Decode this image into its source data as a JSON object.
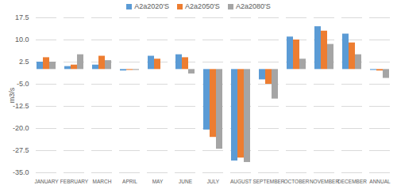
{
  "chart_data": {
    "type": "bar",
    "categories": [
      "JANUARY",
      "FEBRUARY",
      "MARCH",
      "APRIL",
      "MAY",
      "JUNE",
      "JULY",
      "AUGUST",
      "SEPTEMBER",
      "OCTOBER",
      "NOVEMBER",
      "DECEMBER",
      "ANNUAL"
    ],
    "series": [
      {
        "name": "A2a2020'S",
        "color": "#5B9BD5",
        "values": [
          2.5,
          1,
          1.5,
          -0.5,
          4.5,
          5,
          -20.5,
          -31,
          -3.5,
          11,
          14.5,
          12,
          -0.3
        ]
      },
      {
        "name": "A2a2050'S",
        "color": "#ED7D31",
        "values": [
          4,
          1.5,
          4.5,
          -0.3,
          3.5,
          4,
          -23,
          -30,
          -5,
          10,
          13,
          9,
          -0.5
        ]
      },
      {
        "name": "A2a2080'S",
        "color": "#A5A5A5",
        "values": [
          2.5,
          5,
          3,
          -0.3,
          0,
          -1.5,
          -27,
          -31.5,
          -10,
          3.5,
          8.5,
          5,
          -3
        ]
      }
    ],
    "y_label": "m3/s",
    "ylim": [
      -35,
      17.5
    ],
    "yticks": [
      {
        "value": -35,
        "label": "-35.0"
      },
      -27.5,
      {
        "value": -20,
        "label": "-20.0"
      },
      -12.5,
      {
        "value": -5,
        "label": "-5.0"
      },
      2.5,
      {
        "value": 10,
        "label": "10.0"
      },
      17.5
    ],
    "grid": true,
    "legend": "top"
  }
}
